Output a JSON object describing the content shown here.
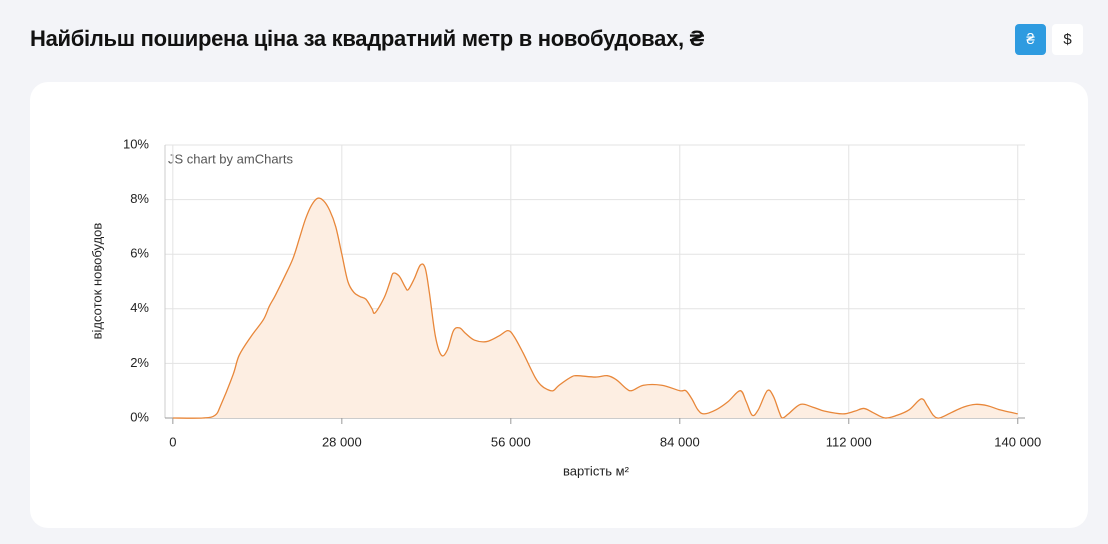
{
  "header": {
    "title": "Найбільш поширена ціна за квадратний метр в новобудовах, ₴",
    "currency_buttons": [
      "₴",
      "$"
    ]
  },
  "chart_data": {
    "type": "area",
    "watermark": "JS chart by amCharts",
    "x_label": "вартість м²",
    "y_label": "відсоток новобудов",
    "color": "#e8873a",
    "fill": "#fdeee2",
    "grid": true,
    "x": [
      0,
      5000,
      7000,
      8000,
      10000,
      11000,
      13000,
      15000,
      16000,
      17000,
      19000,
      20000,
      21000,
      22000,
      23000,
      24000,
      25000,
      26000,
      27000,
      28000,
      29000,
      30000,
      31000,
      32000,
      33000,
      33500,
      35000,
      36000,
      36500,
      37500,
      38500,
      39000,
      40000,
      41000,
      41800,
      42500,
      43500,
      44500,
      45500,
      46500,
      47500,
      48500,
      50000,
      52000,
      54000,
      55500,
      56500,
      58000,
      60000,
      61000,
      62000,
      63000,
      64000,
      66000,
      67000,
      70000,
      72000,
      73500,
      75000,
      76000,
      78000,
      81000,
      84000,
      85000,
      86000,
      87000,
      88000,
      90000,
      92000,
      94000,
      95000,
      96000,
      97000,
      98500,
      99500,
      100500,
      101000,
      102000,
      104000,
      106000,
      108000,
      111000,
      113000,
      114500,
      116000,
      118000,
      120000,
      122000,
      124000,
      125000,
      126000,
      127000,
      129000,
      131000,
      133000,
      135000,
      137000,
      139000,
      140000
    ],
    "values": [
      0,
      0,
      0.1,
      0.5,
      1.6,
      2.3,
      3.0,
      3.6,
      4.1,
      4.5,
      5.4,
      5.9,
      6.6,
      7.3,
      7.8,
      8.05,
      7.95,
      7.6,
      7.0,
      6.0,
      5.0,
      4.6,
      4.45,
      4.35,
      4.0,
      3.85,
      4.4,
      5.0,
      5.3,
      5.2,
      4.8,
      4.7,
      5.1,
      5.6,
      5.5,
      4.6,
      3.0,
      2.3,
      2.5,
      3.2,
      3.3,
      3.1,
      2.85,
      2.8,
      3.0,
      3.2,
      3.0,
      2.4,
      1.5,
      1.2,
      1.05,
      1.0,
      1.2,
      1.5,
      1.55,
      1.5,
      1.55,
      1.4,
      1.1,
      1.0,
      1.2,
      1.2,
      1.0,
      1.0,
      0.7,
      0.3,
      0.15,
      0.3,
      0.6,
      1.0,
      0.6,
      0.1,
      0.3,
      1.0,
      0.8,
      0.2,
      0.0,
      0.15,
      0.5,
      0.4,
      0.25,
      0.15,
      0.25,
      0.35,
      0.2,
      0.0,
      0.1,
      0.3,
      0.7,
      0.45,
      0.1,
      0.0,
      0.2,
      0.4,
      0.5,
      0.45,
      0.3,
      0.2,
      0.15
    ],
    "xlim": [
      -1300,
      141200
    ],
    "ylim": [
      0,
      10
    ],
    "xticks": [
      0,
      {
        "value": 28000,
        "label": "28 000"
      },
      {
        "value": 56000,
        "label": "56 000"
      },
      {
        "value": 84000,
        "label": "84 000"
      },
      {
        "value": 112000,
        "label": "112 000"
      },
      {
        "value": 140000,
        "label": "140 000"
      }
    ],
    "yticks": [
      {
        "value": 0,
        "label": "0%"
      },
      {
        "value": 2,
        "label": "2%"
      },
      {
        "value": 4,
        "label": "4%"
      },
      {
        "value": 6,
        "label": "6%"
      },
      {
        "value": 8,
        "label": "8%"
      },
      {
        "value": 10,
        "label": "10%"
      }
    ]
  }
}
